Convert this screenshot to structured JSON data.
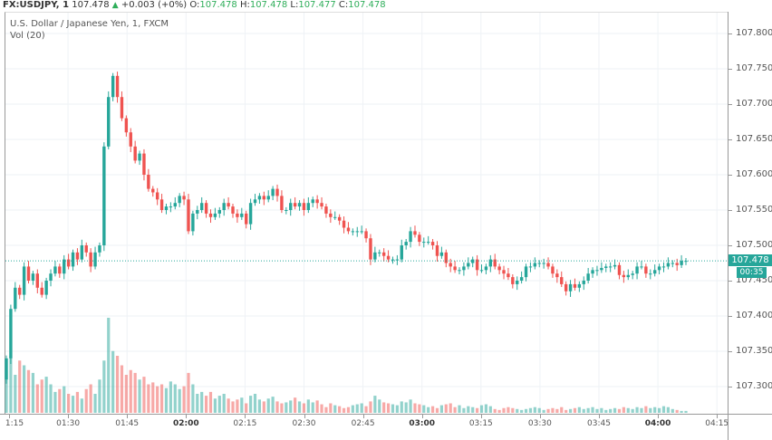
{
  "header": {
    "symbol": "FX:USDJPY, 1",
    "last": "107.478",
    "change_icon": "triangle-up-icon",
    "change": "+0.003 (+0%)",
    "o_label": "O:",
    "o": "107.478",
    "h_label": "H:",
    "h": "107.478",
    "l_label": "L:",
    "l": "107.477",
    "c_label": "C:",
    "c": "107.478"
  },
  "legend": {
    "title": "U.S. Dollar / Japanese Yen, 1, FXCM",
    "volume": "Vol (20)"
  },
  "price_marker": {
    "value": "107.478",
    "countdown": "00:35"
  },
  "colors": {
    "up": "#26a69a",
    "down": "#ef5350",
    "grid": "#eef2f6"
  },
  "chart_data": {
    "type": "candlestick",
    "ylim": [
      107.27,
      107.82
    ],
    "price_ticks": [
      "107.800",
      "107.750",
      "107.700",
      "107.650",
      "107.600",
      "107.550",
      "107.500",
      "107.450",
      "107.400",
      "107.350",
      "107.300"
    ],
    "time_ticks": [
      {
        "label": "1:15",
        "bold": false
      },
      {
        "label": "01:30",
        "bold": false
      },
      {
        "label": "01:45",
        "bold": false
      },
      {
        "label": "02:00",
        "bold": true
      },
      {
        "label": "02:15",
        "bold": false
      },
      {
        "label": "02:30",
        "bold": false
      },
      {
        "label": "02:45",
        "bold": false
      },
      {
        "label": "03:00",
        "bold": true
      },
      {
        "label": "03:15",
        "bold": false
      },
      {
        "label": "03:30",
        "bold": false
      },
      {
        "label": "03:45",
        "bold": false
      },
      {
        "label": "04:00",
        "bold": true
      },
      {
        "label": "04:15",
        "bold": false
      }
    ],
    "first_open": 107.31,
    "closes": [
      107.34,
      107.41,
      107.44,
      107.43,
      107.47,
      107.45,
      107.46,
      107.44,
      107.43,
      107.45,
      107.46,
      107.47,
      107.46,
      107.48,
      107.47,
      107.49,
      107.48,
      107.5,
      107.49,
      107.47,
      107.49,
      107.5,
      107.64,
      107.71,
      107.74,
      107.71,
      107.68,
      107.66,
      107.64,
      107.62,
      107.63,
      107.6,
      107.58,
      107.575,
      107.565,
      107.55,
      107.555,
      107.555,
      107.56,
      107.57,
      107.565,
      107.52,
      107.545,
      107.55,
      107.56,
      107.545,
      107.54,
      107.545,
      107.55,
      107.56,
      107.555,
      107.545,
      107.54,
      107.545,
      107.53,
      107.56,
      107.565,
      107.57,
      107.565,
      107.57,
      107.58,
      107.57,
      107.55,
      107.55,
      107.56,
      107.555,
      107.56,
      107.55,
      107.56,
      107.565,
      107.56,
      107.555,
      107.545,
      107.54,
      107.54,
      107.535,
      107.525,
      107.52,
      107.52,
      107.52,
      107.52,
      107.51,
      107.48,
      107.49,
      107.49,
      107.485,
      107.48,
      107.48,
      107.48,
      107.5,
      107.505,
      107.52,
      107.515,
      107.505,
      107.505,
      107.505,
      107.5,
      107.485,
      107.49,
      107.475,
      107.47,
      107.465,
      107.465,
      107.47,
      107.475,
      107.48,
      107.465,
      107.465,
      107.47,
      107.48,
      107.47,
      107.465,
      107.46,
      107.455,
      107.445,
      107.45,
      107.455,
      107.47,
      107.47,
      107.475,
      107.475,
      107.475,
      107.47,
      107.46,
      107.455,
      107.445,
      107.435,
      107.445,
      107.44,
      107.445,
      107.45,
      107.46,
      107.465,
      107.465,
      107.468,
      107.47,
      107.47,
      107.472,
      107.458,
      107.455,
      107.458,
      107.46,
      107.47,
      107.47,
      107.46,
      107.46,
      107.465,
      107.47,
      107.47,
      107.475,
      107.475,
      107.472,
      107.478,
      107.478
    ],
    "volumes": [
      45,
      60,
      40,
      55,
      50,
      45,
      42,
      30,
      35,
      38,
      30,
      22,
      25,
      28,
      20,
      18,
      22,
      15,
      25,
      30,
      20,
      35,
      55,
      100,
      65,
      60,
      50,
      40,
      45,
      42,
      35,
      38,
      30,
      32,
      28,
      30,
      26,
      33,
      30,
      25,
      28,
      42,
      30,
      20,
      22,
      18,
      22,
      15,
      18,
      20,
      15,
      12,
      14,
      16,
      10,
      18,
      20,
      14,
      12,
      15,
      17,
      12,
      10,
      11,
      13,
      16,
      12,
      10,
      14,
      11,
      13,
      9,
      6,
      10,
      8,
      7,
      5,
      6,
      8,
      9,
      10,
      7,
      12,
      18,
      14,
      11,
      10,
      9,
      8,
      12,
      11,
      14,
      10,
      9,
      8,
      6,
      7,
      5,
      8,
      9,
      10,
      6,
      8,
      5,
      7,
      6,
      5,
      8,
      9,
      7,
      4,
      3,
      5,
      6,
      5,
      4,
      3,
      4,
      5,
      6,
      5,
      3,
      4,
      5,
      4,
      6,
      3,
      4,
      5,
      6,
      4,
      5,
      6,
      4,
      5,
      3,
      4,
      5,
      4,
      6,
      5,
      4,
      6,
      5,
      7,
      5,
      6,
      5,
      7,
      6,
      4,
      3,
      2,
      2
    ]
  }
}
